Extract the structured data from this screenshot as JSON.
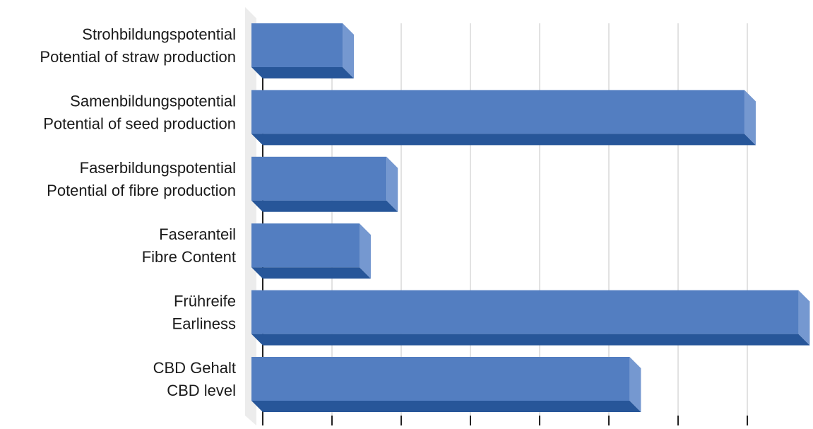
{
  "chart_data": {
    "type": "bar",
    "orientation": "horizontal",
    "style": "3d",
    "categories": [
      [
        "Strohbildungspotential",
        "Potential of straw production"
      ],
      [
        "Samenbildungspotential",
        "Potential of seed production"
      ],
      [
        "Faserbildungspotential",
        "Potential of fibre production"
      ],
      [
        "Faseranteil",
        "Fibre Content"
      ],
      [
        "Frühreife",
        "Earliness"
      ],
      [
        "CBD Gehalt",
        "CBD level"
      ]
    ],
    "values": [
      1.35,
      7.3,
      2.0,
      1.6,
      8.1,
      5.6
    ],
    "xlim": [
      0,
      8.2
    ],
    "grid": true,
    "title": "",
    "xlabel": "",
    "ylabel": "",
    "colors": {
      "bar_front": "#537ec1",
      "bar_bottom": "#275699",
      "bar_side": "#7598d0",
      "grid": "#d9d9d9",
      "axis": "#222222",
      "wall": "#ececec",
      "label": "#1a1a1a"
    }
  }
}
